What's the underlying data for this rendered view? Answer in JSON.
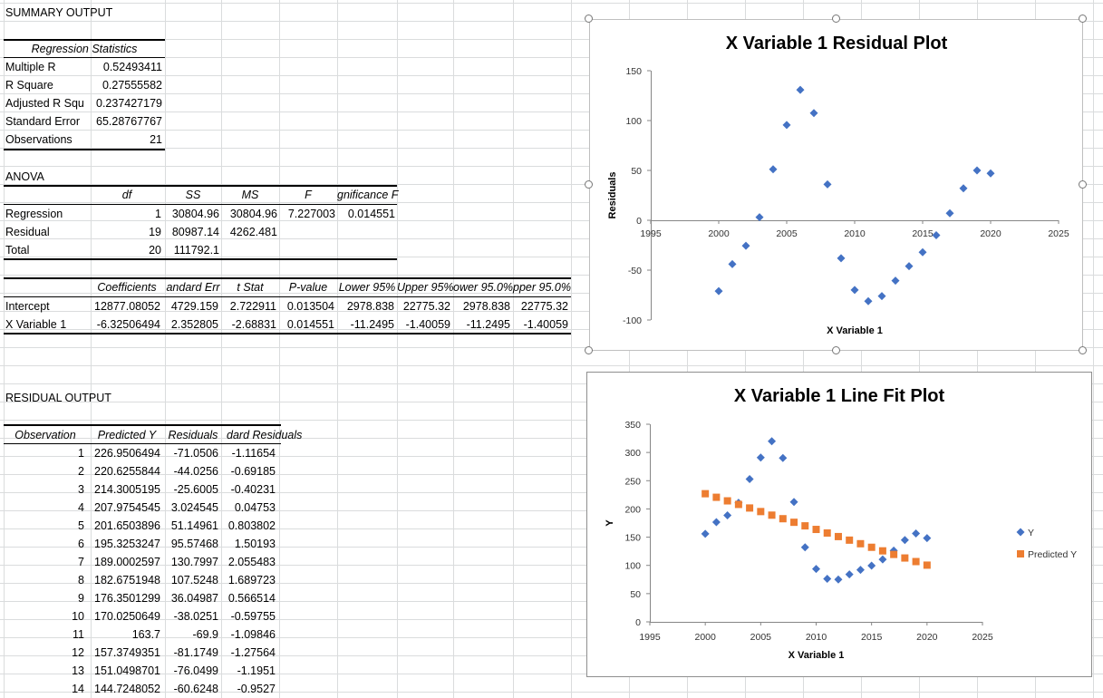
{
  "summary": {
    "title": "SUMMARY OUTPUT",
    "reg_stats_header": "Regression Statistics",
    "reg_stats": [
      {
        "label": "Multiple R",
        "value": "0.52493411"
      },
      {
        "label": "R Square",
        "value": "0.27555582"
      },
      {
        "label": "Adjusted R Squ",
        "value": "0.237427179"
      },
      {
        "label": "Standard Error",
        "value": "65.28767767"
      },
      {
        "label": "Observations",
        "value": "21"
      }
    ]
  },
  "anova": {
    "title": "ANOVA",
    "headers": [
      "df",
      "SS",
      "MS",
      "F",
      "gnificance F"
    ],
    "rows": [
      {
        "label": "Regression",
        "df": "1",
        "ss": "30804.96",
        "ms": "30804.96",
        "f": "7.227003",
        "sig": "0.014551"
      },
      {
        "label": "Residual",
        "df": "19",
        "ss": "80987.14",
        "ms": "4262.481",
        "f": "",
        "sig": ""
      },
      {
        "label": "Total",
        "df": "20",
        "ss": "111792.1",
        "ms": "",
        "f": "",
        "sig": ""
      }
    ]
  },
  "coefficients": {
    "headers": [
      "Coefficients",
      "andard Err",
      "t Stat",
      "P-value",
      "Lower 95%",
      "Upper 95%",
      "ower 95.0%",
      "pper 95.0%"
    ],
    "rows": [
      {
        "label": "Intercept",
        "values": [
          "12877.08052",
          "4729.159",
          "2.722911",
          "0.013504",
          "2978.838",
          "22775.32",
          "2978.838",
          "22775.32"
        ]
      },
      {
        "label": "X Variable 1",
        "values": [
          "-6.32506494",
          "2.352805",
          "-2.68831",
          "0.014551",
          "-11.2495",
          "-1.40059",
          "-11.2495",
          "-1.40059"
        ]
      }
    ]
  },
  "residual_output": {
    "title": "RESIDUAL OUTPUT",
    "headers": [
      "Observation",
      "Predicted Y",
      "Residuals",
      "dard Residuals"
    ],
    "rows": [
      [
        "1",
        "226.9506494",
        "-71.0506",
        "-1.11654"
      ],
      [
        "2",
        "220.6255844",
        "-44.0256",
        "-0.69185"
      ],
      [
        "3",
        "214.3005195",
        "-25.6005",
        "-0.40231"
      ],
      [
        "4",
        "207.9754545",
        "3.024545",
        "0.04753"
      ],
      [
        "5",
        "201.6503896",
        "51.14961",
        "0.803802"
      ],
      [
        "6",
        "195.3253247",
        "95.57468",
        "1.50193"
      ],
      [
        "7",
        "189.0002597",
        "130.7997",
        "2.055483"
      ],
      [
        "8",
        "182.6751948",
        "107.5248",
        "1.689723"
      ],
      [
        "9",
        "176.3501299",
        "36.04987",
        "0.566514"
      ],
      [
        "10",
        "170.0250649",
        "-38.0251",
        "-0.59755"
      ],
      [
        "11",
        "163.7",
        "-69.9",
        "-1.09846"
      ],
      [
        "12",
        "157.3749351",
        "-81.1749",
        "-1.27564"
      ],
      [
        "13",
        "151.0498701",
        "-76.0499",
        "-1.1951"
      ],
      [
        "14",
        "144.7248052",
        "-60.6248",
        "-0.9527"
      ]
    ]
  },
  "chart_data": [
    {
      "type": "scatter",
      "title": "X Variable 1  Residual Plot",
      "xlabel": "X Variable 1",
      "ylabel": "Residuals",
      "xlim": [
        1995,
        2025
      ],
      "ylim": [
        -100,
        150
      ],
      "xticks": [
        "1995",
        "2000",
        "2005",
        "2010",
        "2015",
        "2020",
        "2025"
      ],
      "yticks": [
        "-100",
        "-50",
        "0",
        "50",
        "100",
        "150"
      ],
      "grid": false,
      "series": [
        {
          "color": "#4472c4",
          "points": [
            [
              2000,
              -71.05
            ],
            [
              2001,
              -44.03
            ],
            [
              2002,
              -25.6
            ],
            [
              2003,
              3.02
            ],
            [
              2004,
              51.15
            ],
            [
              2005,
              95.57
            ],
            [
              2006,
              130.8
            ],
            [
              2007,
              107.52
            ],
            [
              2008,
              36.05
            ],
            [
              2009,
              -38.03
            ],
            [
              2010,
              -69.9
            ],
            [
              2011,
              -81.17
            ],
            [
              2012,
              -76.05
            ],
            [
              2013,
              -60.62
            ],
            [
              2014,
              -46
            ],
            [
              2015,
              -32
            ],
            [
              2016,
              -15
            ],
            [
              2017,
              7
            ],
            [
              2018,
              32
            ],
            [
              2019,
              50
            ],
            [
              2020,
              47
            ]
          ]
        }
      ]
    },
    {
      "type": "scatter",
      "title": "X Variable 1 Line Fit  Plot",
      "xlabel": "X Variable 1",
      "ylabel": "Y",
      "xlim": [
        1995,
        2025
      ],
      "ylim": [
        0,
        350
      ],
      "xticks": [
        "1995",
        "2000",
        "2005",
        "2010",
        "2015",
        "2020",
        "2025"
      ],
      "yticks": [
        "0",
        "50",
        "100",
        "150",
        "200",
        "250",
        "300",
        "350"
      ],
      "grid": false,
      "legend": "right",
      "series": [
        {
          "name": "Y",
          "color": "#4472c4",
          "marker": "diamond",
          "points": [
            [
              2000,
              155.9
            ],
            [
              2001,
              176.6
            ],
            [
              2002,
              188.7
            ],
            [
              2003,
              211.0
            ],
            [
              2004,
              252.8
            ],
            [
              2005,
              290.9
            ],
            [
              2006,
              319.8
            ],
            [
              2007,
              290.2
            ],
            [
              2008,
              212.4
            ],
            [
              2009,
              132.0
            ],
            [
              2010,
              93.8
            ],
            [
              2011,
              76.2
            ],
            [
              2012,
              75.0
            ],
            [
              2013,
              84.1
            ],
            [
              2014,
              92.1
            ],
            [
              2015,
              99.6
            ],
            [
              2016,
              110.6
            ],
            [
              2017,
              126.3
            ],
            [
              2018,
              144.9
            ],
            [
              2019,
              156.6
            ],
            [
              2020,
              148.3
            ]
          ]
        },
        {
          "name": "Predicted Y",
          "color": "#ed7d31",
          "marker": "square",
          "points": [
            [
              2000,
              226.95
            ],
            [
              2001,
              220.63
            ],
            [
              2002,
              214.3
            ],
            [
              2003,
              207.98
            ],
            [
              2004,
              201.65
            ],
            [
              2005,
              195.33
            ],
            [
              2006,
              189.0
            ],
            [
              2007,
              182.68
            ],
            [
              2008,
              176.35
            ],
            [
              2009,
              170.03
            ],
            [
              2010,
              163.7
            ],
            [
              2011,
              157.37
            ],
            [
              2012,
              151.05
            ],
            [
              2013,
              144.72
            ],
            [
              2014,
              138.4
            ],
            [
              2015,
              132.07
            ],
            [
              2016,
              125.75
            ],
            [
              2017,
              119.42
            ],
            [
              2018,
              113.1
            ],
            [
              2019,
              106.77
            ],
            [
              2020,
              100.45
            ]
          ]
        }
      ]
    }
  ]
}
